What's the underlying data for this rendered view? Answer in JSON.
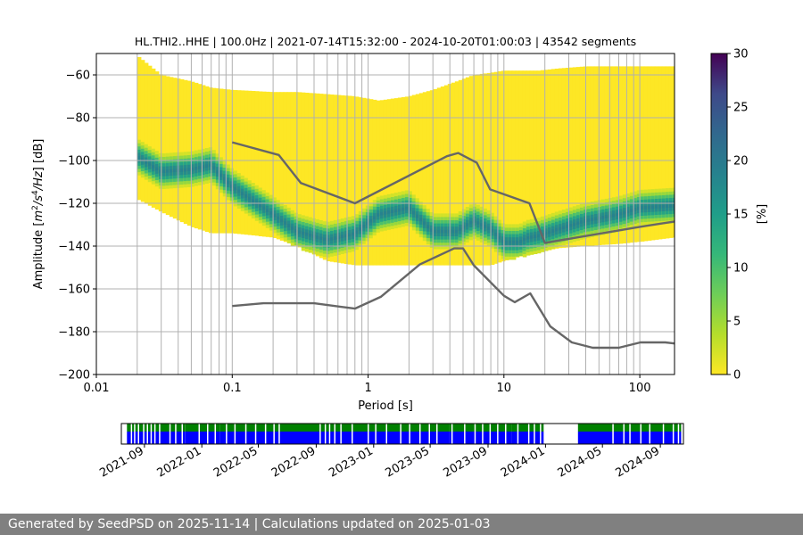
{
  "chart_data": [
    {
      "type": "heatmap",
      "title": "HL.THI2..HHE | 100.0Hz | 2021-07-14T15:32:00 - 2024-10-20T01:00:03 | 43542 segments",
      "xlabel": "Period [s]",
      "ylabel_parts": [
        "Amplitude [",
        "m",
        "2",
        "/",
        "s",
        "4",
        "/",
        "Hz",
        "] [dB]"
      ],
      "x_scale": "log",
      "xlim": [
        0.01,
        180
      ],
      "ylim": [
        -200,
        -50
      ],
      "x_ticks": [
        {
          "value": 0.01,
          "label": "0.01"
        },
        {
          "value": 0.1,
          "label": "0.1"
        },
        {
          "value": 1,
          "label": "1"
        },
        {
          "value": 10,
          "label": "10"
        },
        {
          "value": 100,
          "label": "100"
        }
      ],
      "y_ticks": [
        {
          "value": -60,
          "label": "−60"
        },
        {
          "value": -80,
          "label": "−80"
        },
        {
          "value": -100,
          "label": "−100"
        },
        {
          "value": -120,
          "label": "−120"
        },
        {
          "value": -140,
          "label": "−140"
        },
        {
          "value": -160,
          "label": "−160"
        },
        {
          "value": -180,
          "label": "−180"
        },
        {
          "value": -200,
          "label": "−200"
        }
      ],
      "grid": true,
      "period_gridlines": [
        0.02,
        0.03,
        0.04,
        0.05,
        0.06,
        0.07,
        0.08,
        0.09,
        0.1,
        0.2,
        0.3,
        0.4,
        0.5,
        0.6,
        0.7,
        0.8,
        0.9,
        1,
        2,
        3,
        4,
        5,
        6,
        7,
        8,
        9,
        10,
        20,
        30,
        40,
        50,
        60,
        70,
        80,
        90,
        100
      ],
      "colormap": "viridis",
      "colorbar": {
        "label": "[%]",
        "min": 0,
        "max": 30,
        "ticks": [
          {
            "value": 0,
            "label": "0"
          },
          {
            "value": 5,
            "label": "5"
          },
          {
            "value": 10,
            "label": "10"
          },
          {
            "value": 15,
            "label": "15"
          },
          {
            "value": 20,
            "label": "20"
          },
          {
            "value": 25,
            "label": "25"
          },
          {
            "value": 30,
            "label": "30"
          }
        ]
      },
      "psd_envelope": {
        "period": [
          0.02,
          0.03,
          0.05,
          0.07,
          0.1,
          0.2,
          0.3,
          0.5,
          0.8,
          1.2,
          2,
          3,
          4.5,
          6,
          8,
          10,
          13,
          15,
          18,
          25,
          40,
          70,
          100,
          180
        ],
        "upper_db": [
          -51,
          -60,
          -63,
          -66,
          -67,
          -68,
          -68,
          -69,
          -70,
          -72,
          -70,
          -67,
          -63,
          -60,
          -59,
          -58,
          -58,
          -58,
          -58,
          -57,
          -56,
          -56,
          -56,
          -56
        ],
        "lower_db": [
          -118,
          -124,
          -131,
          -134,
          -134,
          -136,
          -140,
          -147,
          -149,
          -149,
          -149,
          -149,
          -149,
          -149,
          -149,
          -147,
          -145,
          -144,
          -143,
          -141,
          -140,
          -139,
          -138,
          -136
        ],
        "mode_db": [
          -98,
          -105,
          -104,
          -102,
          -112,
          -125,
          -133,
          -137,
          -134,
          -125,
          -122,
          -133,
          -133,
          -128,
          -132,
          -138,
          -138,
          -136,
          -135,
          -132,
          -128,
          -125,
          -122,
          -121
        ]
      },
      "series": [
        {
          "role": "high-noise-model",
          "color": "#666666",
          "x": [
            0.1,
            0.22,
            0.32,
            0.8,
            3.8,
            4.6,
            6.3,
            7.9,
            15.4,
            20,
            100,
            180
          ],
          "y": [
            -91.5,
            -97.4,
            -110.5,
            -120,
            -98,
            -96.5,
            -101,
            -113.5,
            -120,
            -138.5,
            -131,
            -128.5
          ]
        },
        {
          "role": "low-noise-model",
          "color": "#666666",
          "x": [
            0.1,
            0.17,
            0.4,
            0.8,
            1.24,
            2.4,
            4.3,
            5,
            6,
            10,
            12,
            15.6,
            21.9,
            31.6,
            45,
            70,
            101,
            154,
            180
          ],
          "y": [
            -168,
            -166.7,
            -166.7,
            -169.2,
            -163.7,
            -148.6,
            -141.1,
            -141.1,
            -149,
            -163.2,
            -166.2,
            -162.1,
            -177.5,
            -185,
            -187.5,
            -187.5,
            -185,
            -185,
            -185.5
          ]
        }
      ]
    },
    {
      "type": "timeline",
      "x_scale": "time",
      "xlim": [
        "2021-07-14",
        "2024-10-20"
      ],
      "x_ticks": [
        {
          "date": "2021-09-01",
          "label": "2021-09"
        },
        {
          "date": "2022-01-01",
          "label": "2022-01"
        },
        {
          "date": "2022-05-01",
          "label": "2022-05"
        },
        {
          "date": "2022-09-01",
          "label": "2022-09"
        },
        {
          "date": "2023-01-01",
          "label": "2023-01"
        },
        {
          "date": "2023-05-01",
          "label": "2023-05"
        },
        {
          "date": "2023-09-01",
          "label": "2023-09"
        },
        {
          "date": "2024-01-01",
          "label": "2024-01"
        },
        {
          "date": "2024-05-01",
          "label": "2024-05"
        },
        {
          "date": "2024-09-01",
          "label": "2024-09"
        }
      ],
      "top_band_color": "#008000",
      "bottom_band_color": "#0000ff",
      "coverage_intervals": [
        [
          "2021-07-26",
          "2021-11-27"
        ],
        [
          "2021-11-27",
          "2022-02-09"
        ],
        [
          "2022-02-09",
          "2022-06-23"
        ],
        [
          "2022-06-23",
          "2023-01-25"
        ],
        [
          "2023-01-25",
          "2023-06-10"
        ],
        [
          "2023-06-10",
          "2023-10-22"
        ],
        [
          "2023-10-22",
          "2023-12-28"
        ],
        [
          "2024-03-10",
          "2024-05-25"
        ],
        [
          "2024-05-25",
          "2024-10-15"
        ]
      ],
      "gaps": [
        "2021-08-03",
        "2021-08-10",
        "2021-08-18",
        "2021-08-29",
        "2021-09-06",
        "2021-09-14",
        "2021-09-22",
        "2021-10-02",
        "2021-10-24",
        "2021-11-05",
        "2021-11-19",
        "2021-12-25",
        "2022-01-12",
        "2022-01-28",
        "2022-02-21",
        "2022-03-11",
        "2022-04-03",
        "2022-04-24",
        "2022-05-15",
        "2022-06-02",
        "2022-06-13",
        "2022-09-08",
        "2022-09-19",
        "2022-09-28",
        "2022-10-09",
        "2022-10-22",
        "2022-11-15",
        "2022-12-19",
        "2023-01-04",
        "2023-01-27",
        "2023-02-26",
        "2023-03-17",
        "2023-04-08",
        "2023-04-28",
        "2023-05-14",
        "2023-06-15",
        "2023-07-12",
        "2023-08-03",
        "2023-08-19",
        "2023-09-04",
        "2023-09-20",
        "2023-10-07",
        "2023-11-02",
        "2023-11-25",
        "2023-12-07",
        "2023-12-20",
        "2024-05-22",
        "2024-06-14",
        "2024-06-27",
        "2024-07-20",
        "2024-08-08",
        "2024-09-06",
        "2024-09-27",
        "2024-10-08"
      ]
    }
  ],
  "footer": {
    "text": "Generated by SeedPSD on 2025-11-14 | Calculations updated on 2025-01-03"
  }
}
